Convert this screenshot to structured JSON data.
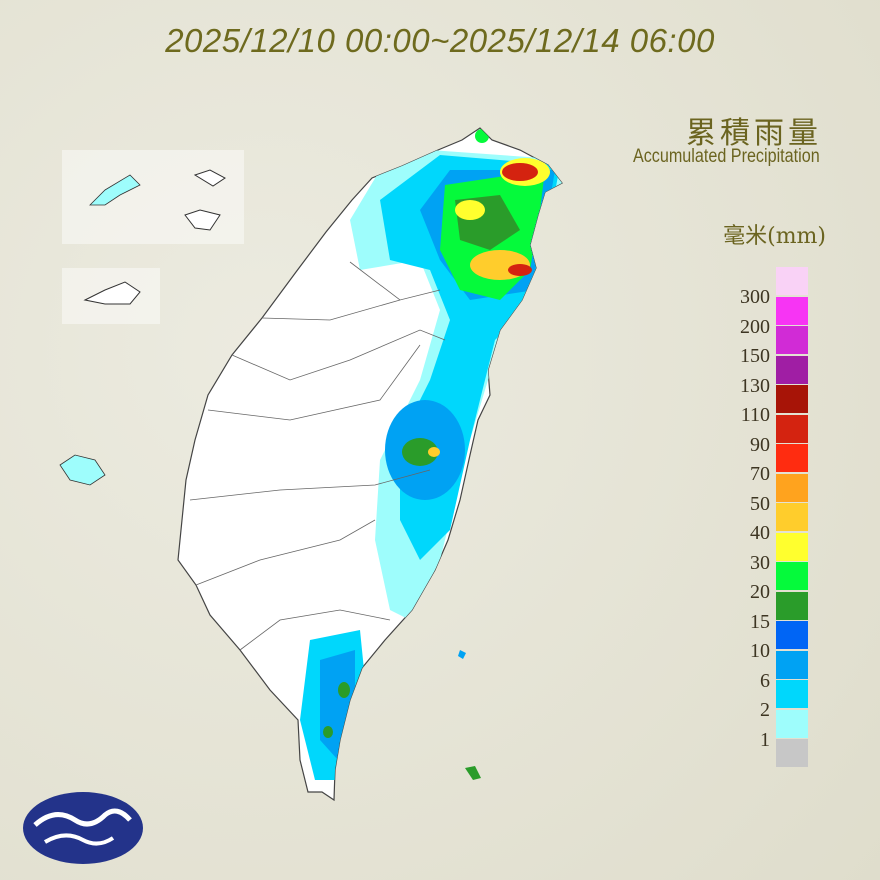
{
  "header": {
    "time_range": "2025/12/10 00:00~2025/12/14 06:00"
  },
  "legend": {
    "title_zh": "累積雨量",
    "title_en": "Accumulated Precipitation",
    "unit": "毫米(mm)",
    "colors": [
      "#f9d2f6",
      "#f734f4",
      "#d12bd6",
      "#a01ea4",
      "#a71407",
      "#d42310",
      "#ff2c10",
      "#ffa31e",
      "#ffcd2c",
      "#ffff2e",
      "#05fa3b",
      "#2a9c2a",
      "#0065f5",
      "#00a2f3",
      "#00d7fc",
      "#9efdfc",
      "#c7c7c7"
    ],
    "labels": [
      "300",
      "200",
      "150",
      "130",
      "110",
      "90",
      "70",
      "50",
      "40",
      "30",
      "20",
      "15",
      "10",
      "6",
      "2",
      "1"
    ]
  },
  "map": {
    "region": "Taiwan",
    "background_color": "#ffffff",
    "border_color": "#555555"
  },
  "logo": {
    "name": "central-weather-administration-logo",
    "color": "#23338a"
  }
}
